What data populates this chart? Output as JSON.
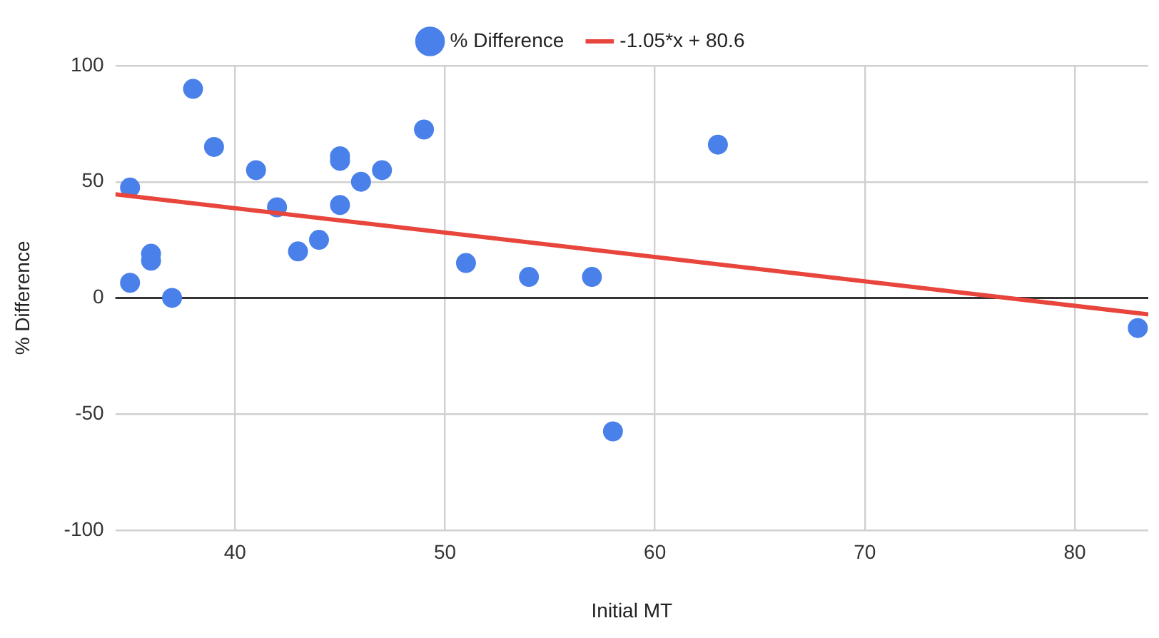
{
  "chart_data": {
    "type": "scatter",
    "xlabel": "Initial MT",
    "ylabel": "% Difference",
    "xlim": [
      34.3,
      83.5
    ],
    "xticks": [
      40,
      50,
      60,
      70,
      80
    ],
    "ylim": [
      -100,
      100
    ],
    "yticks": [
      -100,
      -50,
      0,
      50,
      100
    ],
    "grid": true,
    "legend": "top",
    "marker": "circle",
    "series": [
      {
        "name": "% Difference",
        "color": "#4a80ea",
        "x": [
          35,
          38,
          39,
          36,
          36,
          35,
          37,
          41,
          42,
          43,
          44,
          45,
          45,
          45,
          46,
          47,
          49,
          51,
          54,
          57,
          58,
          63,
          83
        ],
        "values": [
          47.5,
          90,
          65,
          19,
          16,
          6.5,
          0,
          55,
          39,
          20,
          25,
          61,
          59,
          40,
          50,
          55,
          72.5,
          15,
          9,
          9,
          -57.5,
          66,
          -13
        ]
      },
      {
        "name": "-1.05*x + 80.6",
        "type": "line",
        "color": "#e8453c",
        "marker": "none",
        "x": [
          34.3,
          83.5
        ],
        "values": [
          44.6,
          -7.1
        ]
      }
    ],
    "ref_lines": [
      {
        "axis": "y",
        "value": 0,
        "color": "#333333"
      }
    ]
  }
}
